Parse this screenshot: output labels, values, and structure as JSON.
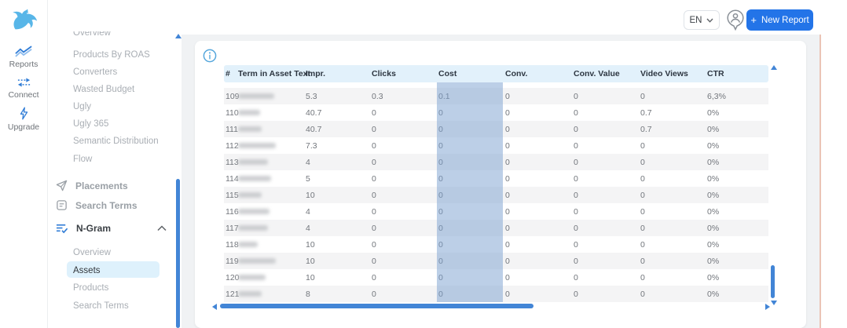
{
  "topbar": {
    "language_label": "EN",
    "plus": "+",
    "new_report_label": "New Report"
  },
  "rail": {
    "items": [
      {
        "label": "Reports"
      },
      {
        "label": "Connect"
      },
      {
        "label": "Upgrade"
      }
    ]
  },
  "sidebar": {
    "scroll_items": [
      "Overview",
      "Products By ROAS",
      "Converters",
      "Wasted Budget",
      "Ugly",
      "Ugly 365",
      "Semantic Distribution",
      "Flow"
    ],
    "sections": [
      {
        "label": "Placements"
      },
      {
        "label": "Search Terms"
      },
      {
        "label": "N-Gram",
        "expanded": true
      }
    ],
    "ngram_children": [
      {
        "label": "Overview",
        "selected": false
      },
      {
        "label": "Assets",
        "selected": true
      },
      {
        "label": "Products",
        "selected": false
      },
      {
        "label": "Search Terms",
        "selected": false
      }
    ]
  },
  "table": {
    "columns": [
      {
        "key": "num",
        "label": "#"
      },
      {
        "key": "term",
        "label": "Term in Asset Text"
      },
      {
        "key": "impr",
        "label": "Impr."
      },
      {
        "key": "clicks",
        "label": "Clicks"
      },
      {
        "key": "cost",
        "label": "Cost"
      },
      {
        "key": "conv",
        "label": "Conv."
      },
      {
        "key": "conv_value",
        "label": "Conv. Value"
      },
      {
        "key": "video_views",
        "label": "Video Views"
      },
      {
        "key": "ctr",
        "label": "CTR"
      }
    ],
    "highlighted_column": "cost",
    "rows": [
      {
        "num": "109",
        "term_redacted": true,
        "term_blur_width": 46,
        "impr": "5.3",
        "clicks": "0.3",
        "cost": "0.1",
        "conv": "0",
        "conv_value": "0",
        "video_views": "0",
        "ctr": "6,3%"
      },
      {
        "num": "110",
        "term_redacted": true,
        "term_blur_width": 28,
        "impr": "40.7",
        "clicks": "0",
        "cost": "0",
        "conv": "0",
        "conv_value": "0",
        "video_views": "0.7",
        "ctr": "0%"
      },
      {
        "num": "111",
        "term_redacted": true,
        "term_blur_width": 30,
        "impr": "40.7",
        "clicks": "0",
        "cost": "0",
        "conv": "0",
        "conv_value": "0",
        "video_views": "0.7",
        "ctr": "0%"
      },
      {
        "num": "112",
        "term_redacted": true,
        "term_blur_width": 48,
        "impr": "7.3",
        "clicks": "0",
        "cost": "0",
        "conv": "0",
        "conv_value": "0",
        "video_views": "0",
        "ctr": "0%"
      },
      {
        "num": "113",
        "term_redacted": true,
        "term_blur_width": 38,
        "impr": "4",
        "clicks": "0",
        "cost": "0",
        "conv": "0",
        "conv_value": "0",
        "video_views": "0",
        "ctr": "0%"
      },
      {
        "num": "114",
        "term_redacted": true,
        "term_blur_width": 42,
        "impr": "5",
        "clicks": "0",
        "cost": "0",
        "conv": "0",
        "conv_value": "0",
        "video_views": "0",
        "ctr": "0%"
      },
      {
        "num": "115",
        "term_redacted": true,
        "term_blur_width": 30,
        "impr": "10",
        "clicks": "0",
        "cost": "0",
        "conv": "0",
        "conv_value": "0",
        "video_views": "0",
        "ctr": "0%"
      },
      {
        "num": "116",
        "term_redacted": true,
        "term_blur_width": 40,
        "impr": "4",
        "clicks": "0",
        "cost": "0",
        "conv": "0",
        "conv_value": "0",
        "video_views": "0",
        "ctr": "0%"
      },
      {
        "num": "117",
        "term_redacted": true,
        "term_blur_width": 38,
        "impr": "4",
        "clicks": "0",
        "cost": "0",
        "conv": "0",
        "conv_value": "0",
        "video_views": "0",
        "ctr": "0%"
      },
      {
        "num": "118",
        "term_redacted": true,
        "term_blur_width": 25,
        "impr": "10",
        "clicks": "0",
        "cost": "0",
        "conv": "0",
        "conv_value": "0",
        "video_views": "0",
        "ctr": "0%"
      },
      {
        "num": "119",
        "term_redacted": true,
        "term_blur_width": 48,
        "impr": "10",
        "clicks": "0",
        "cost": "0",
        "conv": "0",
        "conv_value": "0",
        "video_views": "0",
        "ctr": "0%"
      },
      {
        "num": "120",
        "term_redacted": true,
        "term_blur_width": 35,
        "impr": "10",
        "clicks": "0",
        "cost": "0",
        "conv": "0",
        "conv_value": "0",
        "video_views": "0",
        "ctr": "0%"
      },
      {
        "num": "121",
        "term_redacted": true,
        "term_blur_width": 30,
        "impr": "8",
        "clicks": "0",
        "cost": "0",
        "conv": "0",
        "conv_value": "0",
        "video_views": "0",
        "ctr": "0%"
      }
    ]
  },
  "colors": {
    "accent_blue": "#2374e8",
    "scrollbar_blue": "#4285d6",
    "table_header_bg": "#e2f1fb",
    "selected_item_bg": "#def1fc",
    "cost_highlight": "#bdd2ea",
    "row_stripe": "#f4f4f5",
    "logo_blue": "#58b6e8",
    "icon_blue": "#2f7cd6",
    "window_edge": "#eac4b6"
  }
}
